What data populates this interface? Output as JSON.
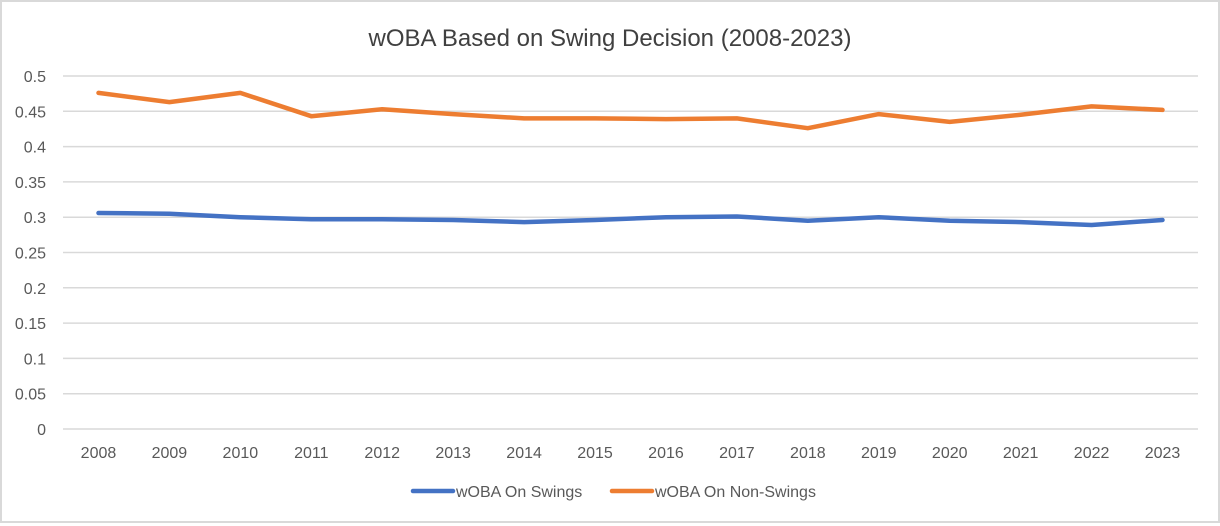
{
  "chart_data": {
    "type": "line",
    "title": "wOBA Based on Swing Decision (2008-2023)",
    "xlabel": "",
    "ylabel": "",
    "categories": [
      "2008",
      "2009",
      "2010",
      "2011",
      "2012",
      "2013",
      "2014",
      "2015",
      "2016",
      "2017",
      "2018",
      "2019",
      "2020",
      "2021",
      "2022",
      "2023"
    ],
    "series": [
      {
        "name": "wOBA On Swings",
        "color": "#4472C4",
        "values": [
          0.306,
          0.305,
          0.3,
          0.297,
          0.297,
          0.296,
          0.293,
          0.296,
          0.3,
          0.301,
          0.295,
          0.3,
          0.295,
          0.293,
          0.289,
          0.296
        ]
      },
      {
        "name": "wOBA On Non-Swings",
        "color": "#ED7D31",
        "values": [
          0.476,
          0.463,
          0.476,
          0.443,
          0.453,
          0.446,
          0.44,
          0.44,
          0.439,
          0.44,
          0.426,
          0.446,
          0.435,
          0.445,
          0.457,
          0.452
        ]
      }
    ],
    "ylim": [
      0,
      0.5
    ],
    "yticks": [
      0,
      0.05,
      0.1,
      0.15,
      0.2,
      0.25,
      0.3,
      0.35,
      0.4,
      0.45,
      0.5
    ],
    "ytick_labels": [
      "0",
      "0.05",
      "0.1",
      "0.15",
      "0.2",
      "0.25",
      "0.3",
      "0.35",
      "0.4",
      "0.45",
      "0.5"
    ],
    "grid": true,
    "legend_position": "bottom",
    "colors": {
      "gridline": "#d9d9d9",
      "text": "#595959",
      "title": "#404040",
      "border": "#d9d9d9"
    }
  }
}
